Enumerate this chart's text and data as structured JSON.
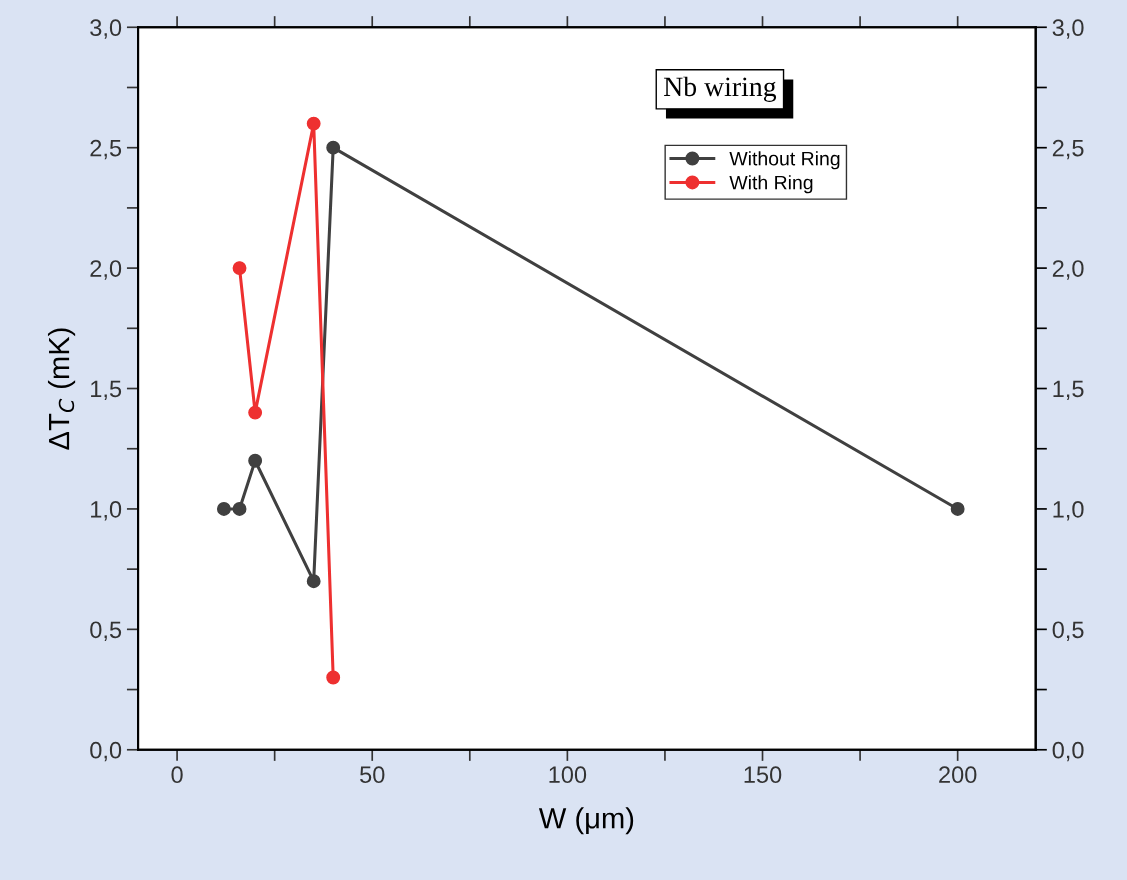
{
  "chart_data": {
    "type": "line",
    "xlabel": "W (μm)",
    "ylabel": "ΔT$_{C}$ (mK)",
    "annotations": [
      "Nb wiring"
    ],
    "xlim": [
      -10,
      220
    ],
    "xticks": [
      0,
      {
        "value": 25,
        "label": null
      },
      50,
      {
        "value": 75,
        "label": null
      },
      100,
      {
        "value": 125,
        "label": null
      },
      150,
      {
        "value": 175,
        "label": null
      },
      200
    ],
    "ylim": [
      0,
      3
    ],
    "yticks": [
      {
        "value": 0,
        "label": "0,0"
      },
      {
        "value": 0.25,
        "label": null
      },
      {
        "value": 0.5,
        "label": "0,5"
      },
      {
        "value": 0.75,
        "label": null
      },
      {
        "value": 1,
        "label": "1,0"
      },
      {
        "value": 1.25,
        "label": null
      },
      {
        "value": 1.5,
        "label": "1,5"
      },
      {
        "value": 1.75,
        "label": null
      },
      {
        "value": 2,
        "label": "2,0"
      },
      {
        "value": 2.25,
        "label": null
      },
      {
        "value": 2.5,
        "label": "2,5"
      },
      {
        "value": 2.75,
        "label": null
      },
      {
        "value": 3,
        "label": "3,0"
      }
    ],
    "y2lim": [
      0,
      3
    ],
    "y2ticks": [
      {
        "value": 0,
        "label": "0,0"
      },
      {
        "value": 0.25,
        "label": null
      },
      {
        "value": 0.5,
        "label": "0,5"
      },
      {
        "value": 0.75,
        "label": null
      },
      {
        "value": 1,
        "label": "1,0"
      },
      {
        "value": 1.25,
        "label": null
      },
      {
        "value": 1.5,
        "label": "1,5"
      },
      {
        "value": 1.75,
        "label": null
      },
      {
        "value": 2,
        "label": "2,0"
      },
      {
        "value": 2.25,
        "label": null
      },
      {
        "value": 2.5,
        "label": "2,5"
      },
      {
        "value": 2.75,
        "label": null
      },
      {
        "value": 3,
        "label": "3,0"
      }
    ],
    "marker": "circle",
    "legend": "top right",
    "grid": false,
    "series": [
      {
        "name": "Without Ring",
        "color": "#404040",
        "x": [
          12,
          16,
          20,
          35,
          40,
          200
        ],
        "values": [
          1.0,
          1.0,
          1.2,
          0.7,
          2.5,
          1.0
        ]
      },
      {
        "name": "With Ring",
        "color": "#ee3030",
        "x": [
          16,
          20,
          35,
          40
        ],
        "values": [
          2.0,
          1.4,
          2.6,
          0.3
        ]
      }
    ]
  }
}
